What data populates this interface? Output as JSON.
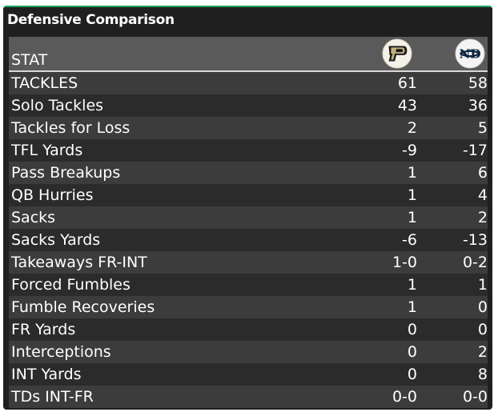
{
  "panel": {
    "title": "Defensive Comparison"
  },
  "table": {
    "header": {
      "stat_label": "STAT",
      "team_a_logo": "purdue-p-logo",
      "team_b_logo": "notre-dame-nd-logo"
    },
    "rows": [
      {
        "stat": "TACKLES",
        "a": "61",
        "b": "58"
      },
      {
        "stat": "Solo Tackles",
        "a": "43",
        "b": "36"
      },
      {
        "stat": "Tackles for Loss",
        "a": "2",
        "b": "5"
      },
      {
        "stat": "TFL Yards",
        "a": "-9",
        "b": "-17"
      },
      {
        "stat": "Pass Breakups",
        "a": "1",
        "b": "6"
      },
      {
        "stat": "QB Hurries",
        "a": "1",
        "b": "4"
      },
      {
        "stat": "Sacks",
        "a": "1",
        "b": "2"
      },
      {
        "stat": "Sacks Yards",
        "a": "-6",
        "b": "-13"
      },
      {
        "stat": "Takeaways FR-INT",
        "a": "1-0",
        "b": "0-2"
      },
      {
        "stat": "Forced Fumbles",
        "a": "1",
        "b": "1"
      },
      {
        "stat": "Fumble Recoveries",
        "a": "1",
        "b": "0"
      },
      {
        "stat": "FR Yards",
        "a": "0",
        "b": "0"
      },
      {
        "stat": "Interceptions",
        "a": "0",
        "b": "2"
      },
      {
        "stat": "INT Yards",
        "a": "0",
        "b": "8"
      },
      {
        "stat": "TDs INT-FR",
        "a": "0-0",
        "b": "0-0"
      }
    ]
  },
  "colors": {
    "accent": "#1fa05a",
    "header_bg": "#5a5a5a",
    "row_odd": "#3c3c3c",
    "row_even": "#2b2b2b",
    "panel_bg": "#1f1f1f",
    "purdue_gold": "#c4b07c",
    "nd_navy": "#0c2340"
  }
}
